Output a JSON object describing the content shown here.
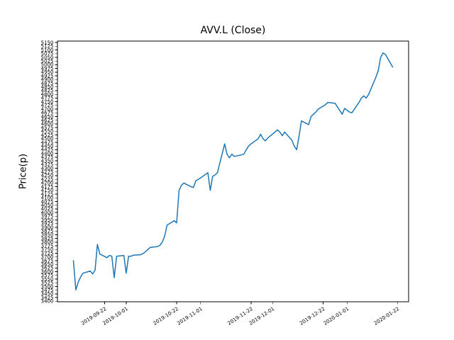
{
  "figure": {
    "title": "AVV.L (Close)",
    "ylabel": "Price(p)"
  },
  "chart_data": {
    "type": "line",
    "title": "AVV.L (Close)",
    "xlabel": "",
    "ylabel": "Price(p)",
    "legend": "none",
    "grid": false,
    "line_color": "#1f77b4",
    "ylim": [
      3396.85,
      5160.15
    ],
    "ytick_step": 25,
    "ytick_labels": [
      "3400",
      "3425",
      "3450",
      "3475",
      "3500",
      "3525",
      "3550",
      "3575",
      "3600",
      "3625",
      "3650",
      "3675",
      "3700",
      "3725",
      "3750",
      "3775",
      "3800",
      "3825",
      "3850",
      "3875",
      "3900",
      "3925",
      "3950",
      "3975",
      "4000",
      "4025",
      "4050",
      "4075",
      "4100",
      "4125",
      "4150",
      "4175",
      "4200",
      "4225",
      "4250",
      "4275",
      "4300",
      "4325",
      "4350",
      "4375",
      "4400",
      "4425",
      "4450",
      "4475",
      "4500",
      "4525",
      "4550",
      "4575",
      "4600",
      "4625",
      "4650",
      "4675",
      "4700",
      "4725",
      "4750",
      "4775",
      "4800",
      "4825",
      "4850",
      "4875",
      "4900",
      "4925",
      "4950",
      "4975",
      "5000",
      "5025",
      "5050",
      "5075",
      "5100",
      "5125",
      "5150"
    ],
    "xtick_labels": [
      "2019-09-22",
      "2019-10-01",
      "2019-10-22",
      "2019-11-01",
      "2019-11-22",
      "2019-12-01",
      "2019-12-22",
      "2020-01-01",
      "2020-01-22"
    ],
    "series": [
      {
        "name": "AVV.L Close",
        "dates": [
          "2019-09-09",
          "2019-09-10",
          "2019-09-11",
          "2019-09-12",
          "2019-09-13",
          "2019-09-16",
          "2019-09-17",
          "2019-09-18",
          "2019-09-19",
          "2019-09-20",
          "2019-09-23",
          "2019-09-24",
          "2019-09-25",
          "2019-09-26",
          "2019-09-27",
          "2019-09-30",
          "2019-10-01",
          "2019-10-02",
          "2019-10-03",
          "2019-10-04",
          "2019-10-07",
          "2019-10-08",
          "2019-10-09",
          "2019-10-10",
          "2019-10-11",
          "2019-10-14",
          "2019-10-15",
          "2019-10-16",
          "2019-10-17",
          "2019-10-18",
          "2019-10-21",
          "2019-10-22",
          "2019-10-23",
          "2019-10-24",
          "2019-10-25",
          "2019-10-28",
          "2019-10-29",
          "2019-10-30",
          "2019-10-31",
          "2019-11-01",
          "2019-11-04",
          "2019-11-05",
          "2019-11-06",
          "2019-11-07",
          "2019-11-08",
          "2019-11-11",
          "2019-11-12",
          "2019-11-13",
          "2019-11-14",
          "2019-11-15",
          "2019-11-18",
          "2019-11-19",
          "2019-11-20",
          "2019-11-21",
          "2019-11-22",
          "2019-11-25",
          "2019-11-26",
          "2019-11-27",
          "2019-11-28",
          "2019-11-29",
          "2019-12-02",
          "2019-12-03",
          "2019-12-04",
          "2019-12-05",
          "2019-12-06",
          "2019-12-09",
          "2019-12-10",
          "2019-12-11",
          "2019-12-12",
          "2019-12-13",
          "2019-12-16",
          "2019-12-17",
          "2019-12-18",
          "2019-12-19",
          "2019-12-20",
          "2019-12-23",
          "2019-12-24",
          "2019-12-27",
          "2019-12-30",
          "2019-12-31",
          "2020-01-02",
          "2020-01-03",
          "2020-01-06",
          "2020-01-07",
          "2020-01-08",
          "2020-01-09",
          "2020-01-10",
          "2020-01-13",
          "2020-01-14",
          "2020-01-15",
          "2020-01-16",
          "2020-01-17",
          "2020-01-20"
        ],
        "values": [
          3675,
          3477,
          3530,
          3565,
          3590,
          3605,
          3585,
          3610,
          3785,
          3720,
          3695,
          3710,
          3705,
          3560,
          3705,
          3710,
          3590,
          3705,
          3705,
          3712,
          3715,
          3722,
          3735,
          3750,
          3765,
          3770,
          3778,
          3800,
          3840,
          3915,
          3945,
          3930,
          4150,
          4185,
          4200,
          4175,
          4170,
          4215,
          4225,
          4235,
          4270,
          4150,
          4245,
          4255,
          4270,
          4465,
          4395,
          4370,
          4395,
          4380,
          4390,
          4395,
          4425,
          4450,
          4465,
          4500,
          4530,
          4500,
          4485,
          4505,
          4545,
          4560,
          4545,
          4520,
          4545,
          4490,
          4450,
          4425,
          4515,
          4620,
          4595,
          4650,
          4665,
          4680,
          4700,
          4730,
          4745,
          4740,
          4665,
          4705,
          4680,
          4675,
          4745,
          4775,
          4790,
          4775,
          4800,
          4915,
          4960,
          5050,
          5080,
          5070,
          4985
        ]
      }
    ]
  }
}
